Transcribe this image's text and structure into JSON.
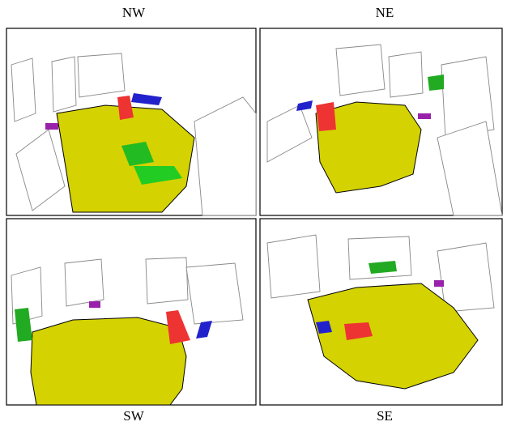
{
  "panels": [
    {
      "label": "NW"
    },
    {
      "label": "NE"
    },
    {
      "label": "SW"
    },
    {
      "label": "SE"
    }
  ]
}
